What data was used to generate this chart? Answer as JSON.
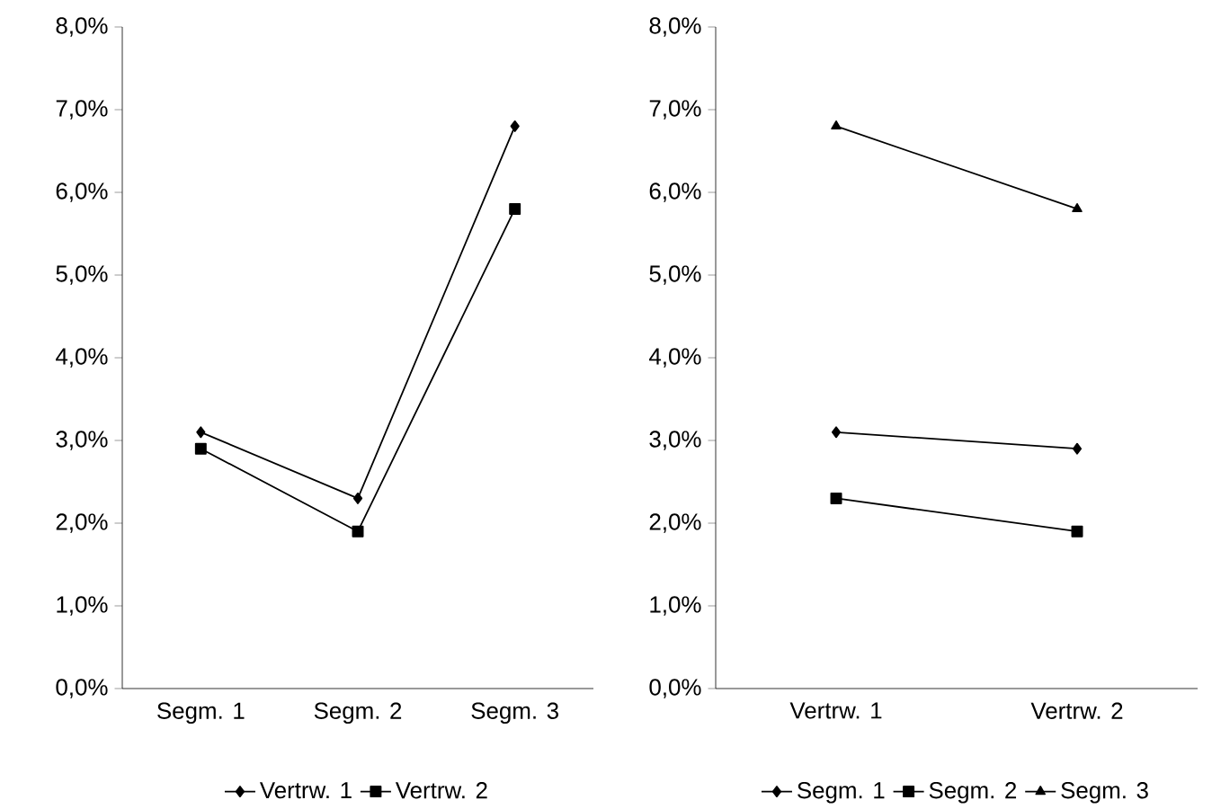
{
  "chart_data": [
    {
      "type": "line",
      "categories": [
        "Segm. 1",
        "Segm. 2",
        "Segm. 3"
      ],
      "series": [
        {
          "name": "Vertrw. 1",
          "color": "#000000",
          "marker": "diamond",
          "values": [
            3.1,
            2.3,
            6.8
          ]
        },
        {
          "name": "Vertrw. 2",
          "color": "#000000",
          "marker": "square",
          "values": [
            2.9,
            1.9,
            5.8
          ]
        }
      ],
      "ylim": [
        0,
        8
      ],
      "yticks": [
        {
          "value": 0,
          "label": "0,0%"
        },
        {
          "value": 1,
          "label": "1,0%"
        },
        {
          "value": 2,
          "label": "2,0%"
        },
        {
          "value": 3,
          "label": "3,0%"
        },
        {
          "value": 4,
          "label": "4,0%"
        },
        {
          "value": 5,
          "label": "5,0%"
        },
        {
          "value": 6,
          "label": "6,0%"
        },
        {
          "value": 7,
          "label": "7,0%"
        },
        {
          "value": 8,
          "label": "8,0%"
        }
      ],
      "grid": false,
      "legend": "bottom"
    },
    {
      "type": "line",
      "categories": [
        "Vertrw. 1",
        "Vertrw. 2"
      ],
      "series": [
        {
          "name": "Segm. 1",
          "color": "#000000",
          "marker": "diamond",
          "values": [
            3.1,
            2.9
          ]
        },
        {
          "name": "Segm. 2",
          "color": "#000000",
          "marker": "square",
          "values": [
            2.3,
            1.9
          ]
        },
        {
          "name": "Segm. 3",
          "color": "#000000",
          "marker": "triangle",
          "values": [
            6.8,
            5.8
          ]
        }
      ],
      "ylim": [
        0,
        8
      ],
      "yticks": [
        {
          "value": 0,
          "label": "0,0%"
        },
        {
          "value": 1,
          "label": "1,0%"
        },
        {
          "value": 2,
          "label": "2,0%"
        },
        {
          "value": 3,
          "label": "3,0%"
        },
        {
          "value": 4,
          "label": "4,0%"
        },
        {
          "value": 5,
          "label": "5,0%"
        },
        {
          "value": 6,
          "label": "6,0%"
        },
        {
          "value": 7,
          "label": "7,0%"
        },
        {
          "value": 8,
          "label": "8,0%"
        }
      ],
      "grid": false,
      "legend": "bottom"
    }
  ]
}
